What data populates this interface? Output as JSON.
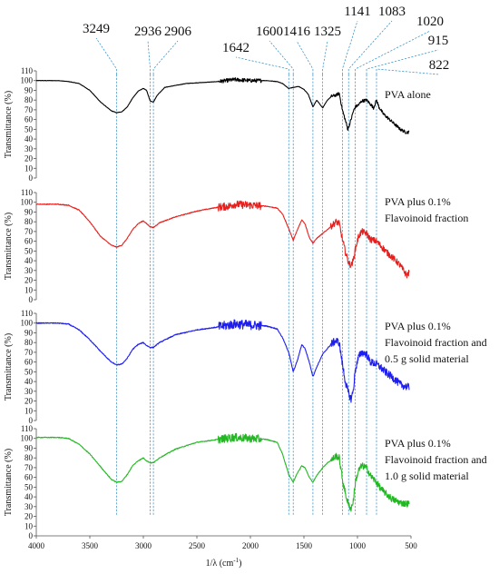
{
  "chart_data": {
    "type": "line",
    "x_axis": {
      "label": "1/λ (cm",
      "label_sup": "-1",
      "label_end": ")",
      "lim": [
        4000,
        500
      ],
      "ticks": [
        4000,
        3500,
        3000,
        2500,
        2000,
        1500,
        1000,
        500
      ]
    },
    "y_axis": {
      "label": "Transmittance (%)",
      "lim": [
        0,
        110
      ],
      "ticks": [
        0,
        10,
        20,
        30,
        40,
        50,
        60,
        70,
        80,
        90,
        100,
        110
      ]
    },
    "peak_markers": [
      {
        "label": "3249",
        "x": 3249
      },
      {
        "label": "2936",
        "x": 2936
      },
      {
        "label": "2906",
        "x": 2906
      },
      {
        "label": "1642",
        "x": 1642
      },
      {
        "label": "1600",
        "x": 1600
      },
      {
        "label": "1416",
        "x": 1416
      },
      {
        "label": "1325",
        "x": 1325
      },
      {
        "label": "1141",
        "x": 1141
      },
      {
        "label": "1083",
        "x": 1083
      },
      {
        "label": "1020",
        "x": 1020
      },
      {
        "label": "915",
        "x": 915
      },
      {
        "label": "822",
        "x": 822
      }
    ],
    "panels": [
      {
        "legend": [
          "PVA alone"
        ],
        "color": "#000000",
        "noise": 1.2,
        "points": [
          [
            4000,
            100
          ],
          [
            3800,
            100
          ],
          [
            3700,
            99
          ],
          [
            3600,
            97
          ],
          [
            3500,
            90
          ],
          [
            3400,
            78
          ],
          [
            3300,
            69
          ],
          [
            3249,
            67
          ],
          [
            3200,
            68
          ],
          [
            3150,
            73
          ],
          [
            3100,
            82
          ],
          [
            3050,
            89
          ],
          [
            3000,
            92
          ],
          [
            2970,
            90
          ],
          [
            2936,
            79
          ],
          [
            2906,
            78
          ],
          [
            2870,
            85
          ],
          [
            2800,
            93
          ],
          [
            2600,
            97
          ],
          [
            2300,
            99
          ],
          [
            2150,
            101
          ],
          [
            2000,
            100
          ],
          [
            1850,
            100
          ],
          [
            1750,
            99
          ],
          [
            1700,
            97
          ],
          [
            1642,
            92
          ],
          [
            1600,
            93
          ],
          [
            1550,
            94
          ],
          [
            1500,
            91
          ],
          [
            1460,
            86
          ],
          [
            1416,
            73
          ],
          [
            1380,
            80
          ],
          [
            1325,
            72
          ],
          [
            1280,
            80
          ],
          [
            1240,
            84
          ],
          [
            1200,
            85
          ],
          [
            1170,
            87
          ],
          [
            1141,
            70
          ],
          [
            1110,
            58
          ],
          [
            1090,
            50
          ],
          [
            1083,
            52
          ],
          [
            1060,
            60
          ],
          [
            1040,
            68
          ],
          [
            1020,
            73
          ],
          [
            990,
            75
          ],
          [
            960,
            79
          ],
          [
            915,
            80
          ],
          [
            880,
            76
          ],
          [
            850,
            72
          ],
          [
            822,
            80
          ],
          [
            800,
            73
          ],
          [
            760,
            66
          ],
          [
            700,
            60
          ],
          [
            650,
            55
          ],
          [
            600,
            50
          ],
          [
            550,
            47
          ],
          [
            520,
            47
          ]
        ]
      },
      {
        "legend": [
          "PVA plus 0.1%",
          "Flavoinoid fraction"
        ],
        "color": "#e8201d",
        "noise": 2.5,
        "points": [
          [
            4000,
            98
          ],
          [
            3800,
            98
          ],
          [
            3700,
            97
          ],
          [
            3600,
            92
          ],
          [
            3500,
            80
          ],
          [
            3400,
            65
          ],
          [
            3300,
            56
          ],
          [
            3249,
            54
          ],
          [
            3200,
            56
          ],
          [
            3150,
            63
          ],
          [
            3100,
            72
          ],
          [
            3050,
            78
          ],
          [
            3000,
            81
          ],
          [
            2970,
            78
          ],
          [
            2936,
            75
          ],
          [
            2906,
            74
          ],
          [
            2850,
            79
          ],
          [
            2700,
            85
          ],
          [
            2500,
            91
          ],
          [
            2300,
            95
          ],
          [
            2200,
            96
          ],
          [
            2150,
            98
          ],
          [
            2000,
            97
          ],
          [
            1850,
            96
          ],
          [
            1750,
            94
          ],
          [
            1700,
            88
          ],
          [
            1642,
            73
          ],
          [
            1600,
            61
          ],
          [
            1560,
            72
          ],
          [
            1520,
            82
          ],
          [
            1490,
            78
          ],
          [
            1450,
            64
          ],
          [
            1416,
            58
          ],
          [
            1380,
            63
          ],
          [
            1325,
            68
          ],
          [
            1280,
            72
          ],
          [
            1240,
            76
          ],
          [
            1200,
            80
          ],
          [
            1170,
            78
          ],
          [
            1141,
            62
          ],
          [
            1110,
            48
          ],
          [
            1083,
            38
          ],
          [
            1060,
            35
          ],
          [
            1040,
            40
          ],
          [
            1020,
            52
          ],
          [
            990,
            65
          ],
          [
            960,
            70
          ],
          [
            915,
            68
          ],
          [
            880,
            62
          ],
          [
            822,
            60
          ],
          [
            780,
            55
          ],
          [
            720,
            48
          ],
          [
            680,
            44
          ],
          [
            640,
            40
          ],
          [
            600,
            35
          ],
          [
            570,
            30
          ],
          [
            540,
            25
          ],
          [
            515,
            28
          ],
          [
            510,
            40
          ],
          [
            505,
            48
          ]
        ]
      },
      {
        "legend": [
          "PVA plus 0.1%",
          "Flavoinoid fraction and",
          "0.5 g solid material"
        ],
        "color": "#1e1ef0",
        "noise": 3.0,
        "points": [
          [
            4000,
            100
          ],
          [
            3800,
            100
          ],
          [
            3700,
            99
          ],
          [
            3600,
            93
          ],
          [
            3500,
            83
          ],
          [
            3400,
            71
          ],
          [
            3300,
            60
          ],
          [
            3249,
            57
          ],
          [
            3200,
            58
          ],
          [
            3150,
            64
          ],
          [
            3100,
            73
          ],
          [
            3050,
            78
          ],
          [
            3000,
            80
          ],
          [
            2970,
            77
          ],
          [
            2936,
            75
          ],
          [
            2906,
            75
          ],
          [
            2850,
            80
          ],
          [
            2700,
            88
          ],
          [
            2500,
            93
          ],
          [
            2300,
            96
          ],
          [
            2150,
            99
          ],
          [
            2000,
            98
          ],
          [
            1850,
            97
          ],
          [
            1750,
            94
          ],
          [
            1700,
            85
          ],
          [
            1642,
            70
          ],
          [
            1600,
            50
          ],
          [
            1560,
            62
          ],
          [
            1520,
            78
          ],
          [
            1490,
            74
          ],
          [
            1450,
            60
          ],
          [
            1416,
            45
          ],
          [
            1380,
            55
          ],
          [
            1325,
            68
          ],
          [
            1280,
            74
          ],
          [
            1240,
            79
          ],
          [
            1200,
            82
          ],
          [
            1170,
            80
          ],
          [
            1141,
            58
          ],
          [
            1110,
            38
          ],
          [
            1083,
            28
          ],
          [
            1060,
            22
          ],
          [
            1040,
            30
          ],
          [
            1020,
            52
          ],
          [
            990,
            65
          ],
          [
            960,
            70
          ],
          [
            915,
            68
          ],
          [
            880,
            60
          ],
          [
            822,
            58
          ],
          [
            780,
            54
          ],
          [
            720,
            48
          ],
          [
            680,
            45
          ],
          [
            640,
            41
          ],
          [
            600,
            37
          ],
          [
            550,
            35
          ],
          [
            520,
            34
          ]
        ]
      },
      {
        "legend": [
          "PVA plus 0.1%",
          "Flavoinoid fraction and",
          "1.0 g solid material"
        ],
        "color": "#23b823",
        "noise": 2.6,
        "points": [
          [
            4000,
            101
          ],
          [
            3800,
            101
          ],
          [
            3700,
            100
          ],
          [
            3600,
            94
          ],
          [
            3500,
            84
          ],
          [
            3400,
            71
          ],
          [
            3300,
            58
          ],
          [
            3249,
            55
          ],
          [
            3200,
            56
          ],
          [
            3150,
            63
          ],
          [
            3100,
            72
          ],
          [
            3050,
            77
          ],
          [
            3000,
            80
          ],
          [
            2970,
            77
          ],
          [
            2936,
            75
          ],
          [
            2906,
            75
          ],
          [
            2850,
            80
          ],
          [
            2700,
            89
          ],
          [
            2500,
            96
          ],
          [
            2300,
            99
          ],
          [
            2150,
            101
          ],
          [
            2000,
            100
          ],
          [
            1850,
            99
          ],
          [
            1750,
            96
          ],
          [
            1700,
            84
          ],
          [
            1642,
            63
          ],
          [
            1600,
            55
          ],
          [
            1560,
            65
          ],
          [
            1520,
            72
          ],
          [
            1490,
            70
          ],
          [
            1450,
            60
          ],
          [
            1416,
            55
          ],
          [
            1380,
            62
          ],
          [
            1325,
            70
          ],
          [
            1280,
            75
          ],
          [
            1240,
            78
          ],
          [
            1200,
            82
          ],
          [
            1170,
            80
          ],
          [
            1141,
            58
          ],
          [
            1110,
            42
          ],
          [
            1083,
            32
          ],
          [
            1060,
            28
          ],
          [
            1040,
            35
          ],
          [
            1020,
            55
          ],
          [
            990,
            67
          ],
          [
            960,
            72
          ],
          [
            915,
            70
          ],
          [
            880,
            62
          ],
          [
            822,
            55
          ],
          [
            780,
            48
          ],
          [
            720,
            42
          ],
          [
            680,
            38
          ],
          [
            640,
            36
          ],
          [
            600,
            34
          ],
          [
            550,
            33
          ],
          [
            520,
            33
          ]
        ]
      }
    ]
  }
}
